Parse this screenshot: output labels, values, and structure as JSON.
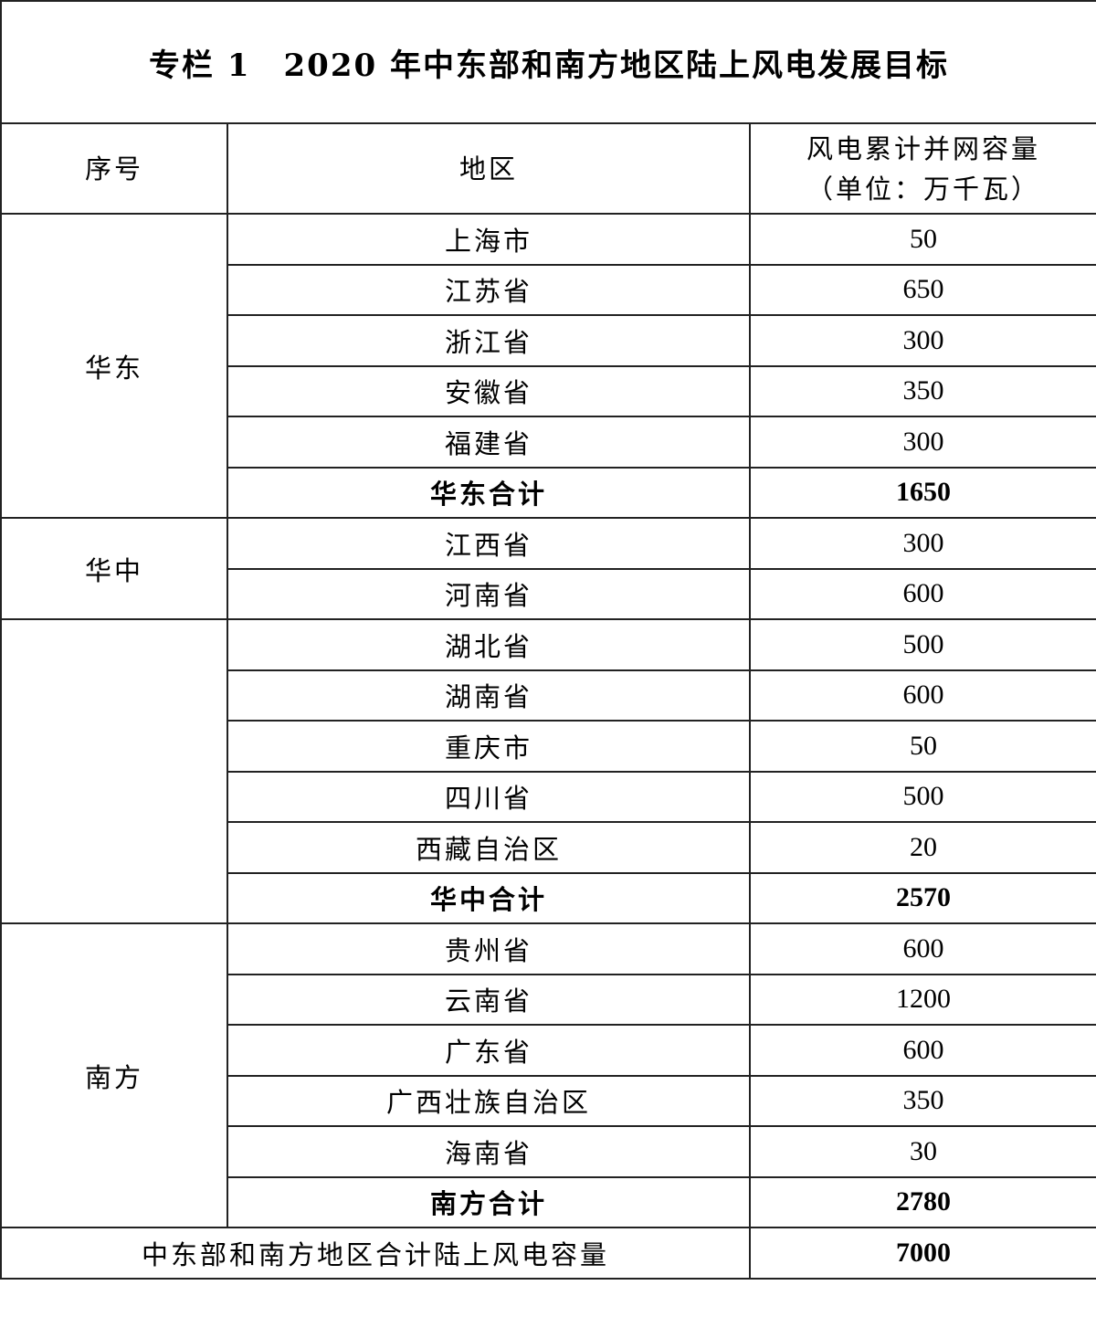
{
  "title": "专栏 1　2020 年中东部和南方地区陆上风电发展目标",
  "header": {
    "col1": "序号",
    "col2": "地区",
    "col3_line1": "风电累计并网容量",
    "col3_line2": "（单位：万千瓦）"
  },
  "rows": [
    {
      "group": "华东",
      "span": 6,
      "area": "上海市",
      "value": "50"
    },
    {
      "area": "江苏省",
      "value": "650"
    },
    {
      "area": "浙江省",
      "value": "300"
    },
    {
      "area": "安徽省",
      "value": "350"
    },
    {
      "area": "福建省",
      "value": "300"
    },
    {
      "area": "华东合计",
      "value": "1650",
      "subtotal": true
    },
    {
      "group": "华中",
      "span": 2,
      "area": "江西省",
      "value": "300"
    },
    {
      "area": "河南省",
      "value": "600"
    },
    {
      "group": "",
      "span": 6,
      "area": "湖北省",
      "value": "500"
    },
    {
      "area": "湖南省",
      "value": "600"
    },
    {
      "area": "重庆市",
      "value": "50"
    },
    {
      "area": "四川省",
      "value": "500"
    },
    {
      "area": "西藏自治区",
      "value": "20"
    },
    {
      "area": "华中合计",
      "value": "2570",
      "subtotal": true
    },
    {
      "group": "南方",
      "span": 6,
      "area": "贵州省",
      "value": "600"
    },
    {
      "area": "云南省",
      "value": "1200"
    },
    {
      "area": "广东省",
      "value": "600"
    },
    {
      "area": "广西壮族自治区",
      "value": "350"
    },
    {
      "area": "海南省",
      "value": "30"
    },
    {
      "area": "南方合计",
      "value": "2780",
      "subtotal": true
    }
  ],
  "total": {
    "label": "中东部和南方地区合计陆上风电容量",
    "value": "7000"
  }
}
